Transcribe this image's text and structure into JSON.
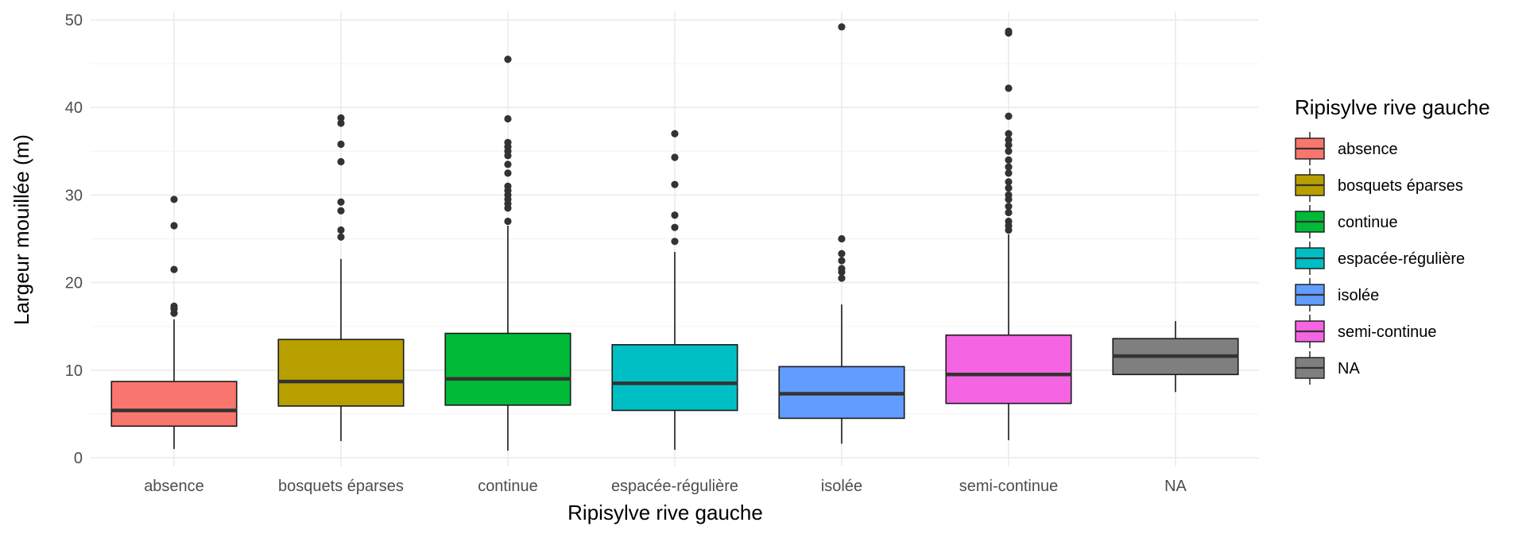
{
  "chart_data": {
    "type": "boxplot",
    "title": "",
    "xlabel": "Ripisylve rive gauche",
    "ylabel": "Largeur mouillée (m)",
    "ylim": [
      -1,
      51
    ],
    "yticks": [
      0,
      10,
      20,
      30,
      40,
      50
    ],
    "grid": true,
    "legend": {
      "title": "Ripisylve rive gauche",
      "position": "right"
    },
    "categories": [
      "absence",
      "bosquets éparses",
      "continue",
      "espacée-régulière",
      "isolée",
      "semi-continue",
      "NA"
    ],
    "boxes": [
      {
        "category": "absence",
        "color": "#F8766D",
        "min": 1.0,
        "q1": 3.6,
        "median": 5.4,
        "q3": 8.7,
        "max": 15.8,
        "outliers": [
          16.5,
          17.0,
          17.3,
          21.5,
          26.5,
          29.5
        ]
      },
      {
        "category": "bosquets éparses",
        "color": "#B79F00",
        "min": 1.9,
        "q1": 5.9,
        "median": 8.7,
        "q3": 13.5,
        "max": 22.7,
        "outliers": [
          25.2,
          26.0,
          28.2,
          29.2,
          33.8,
          35.8,
          38.2,
          38.8
        ]
      },
      {
        "category": "continue",
        "color": "#00BA38",
        "min": 0.8,
        "q1": 6.0,
        "median": 9.0,
        "q3": 14.2,
        "max": 26.5,
        "outliers": [
          27.0,
          28.5,
          29.0,
          29.5,
          30.0,
          30.5,
          31.0,
          32.5,
          33.5,
          34.5,
          35.0,
          35.5,
          36.0,
          38.7,
          45.5
        ]
      },
      {
        "category": "espacée-régulière",
        "color": "#00BFC4",
        "min": 0.9,
        "q1": 5.4,
        "median": 8.5,
        "q3": 12.9,
        "max": 23.5,
        "outliers": [
          24.7,
          26.3,
          27.7,
          31.2,
          34.3,
          37.0
        ]
      },
      {
        "category": "isolée",
        "color": "#619CFF",
        "min": 1.6,
        "q1": 4.5,
        "median": 7.3,
        "q3": 10.4,
        "max": 17.5,
        "outliers": [
          20.5,
          21.2,
          21.6,
          22.5,
          23.3,
          25.0,
          49.2
        ]
      },
      {
        "category": "semi-continue",
        "color": "#F564E3",
        "min": 2.0,
        "q1": 6.2,
        "median": 9.5,
        "q3": 14.0,
        "max": 25.5,
        "outliers": [
          26.0,
          26.5,
          27.0,
          28.0,
          28.7,
          29.5,
          30.0,
          30.8,
          31.5,
          32.5,
          33.2,
          34.0,
          35.0,
          35.7,
          36.3,
          37.0,
          39.0,
          42.2,
          48.5,
          48.7
        ]
      },
      {
        "category": "NA",
        "color": "#7F7F7F",
        "min": 7.5,
        "q1": 9.5,
        "median": 11.6,
        "q3": 13.6,
        "max": 15.6,
        "outliers": []
      }
    ]
  }
}
